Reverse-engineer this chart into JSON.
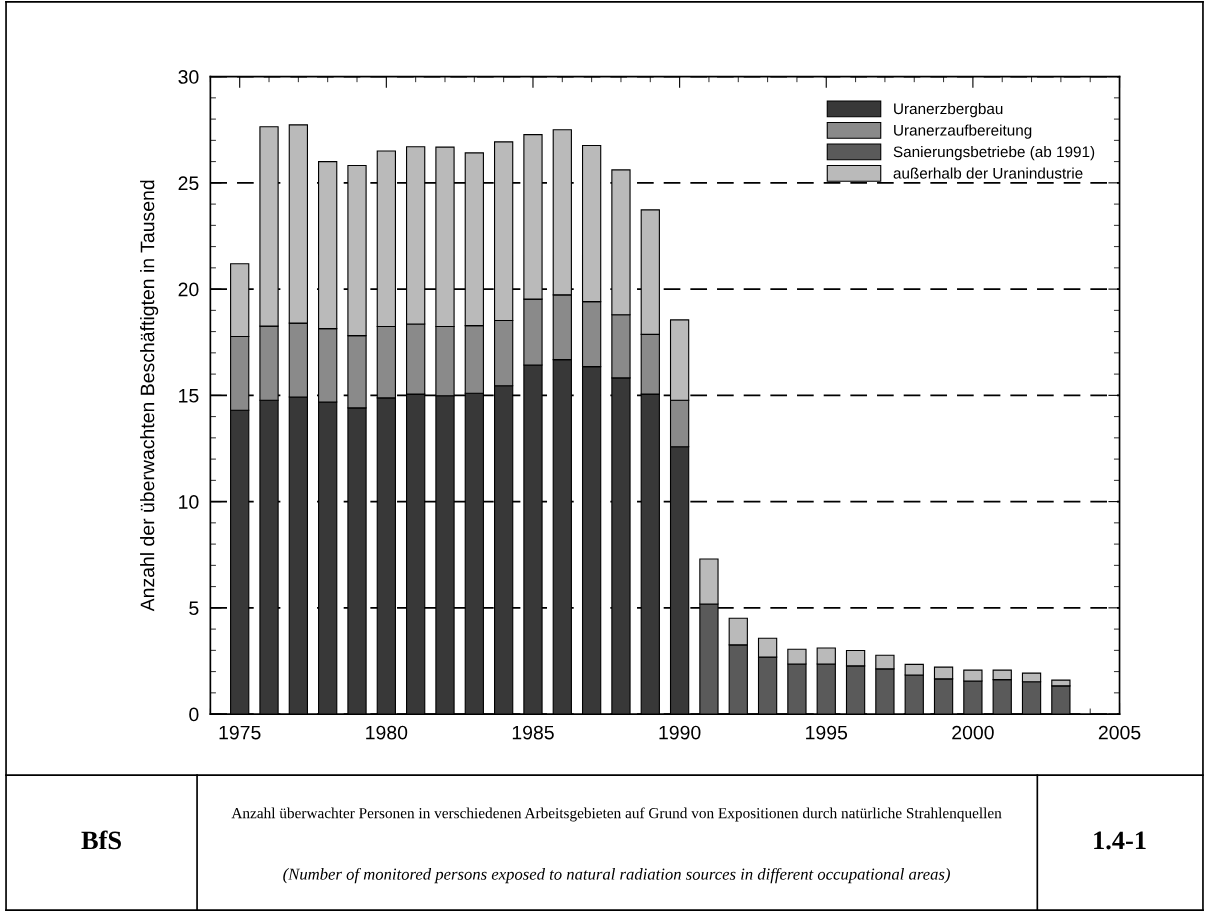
{
  "chart_data": {
    "type": "bar",
    "stacked": true,
    "title": "Anzahl überwachter Personen in verschiedenen Arbeitsgebieten auf Grund von Expositionen durch natürliche Strahlenquellen",
    "subtitle": "(Number of monitored persons exposed to natural radiation sources in different occupational areas)",
    "ylabel": "Anzahl der überwachten Beschäftigten in Tausend",
    "annotations": [
      "BfS",
      "1.4-1"
    ],
    "x": [
      1975,
      1976,
      1977,
      1978,
      1979,
      1980,
      1981,
      1982,
      1983,
      1984,
      1985,
      1986,
      1987,
      1988,
      1989,
      1990,
      1991,
      1992,
      1993,
      1994,
      1995,
      1996,
      1997,
      1998,
      1999,
      2000,
      2001,
      2002,
      2003
    ],
    "series": [
      {
        "name": "Uranerzbergbau",
        "color": "#383838",
        "values": [
          14.3,
          14.77,
          14.92,
          14.69,
          14.41,
          14.88,
          15.06,
          14.98,
          15.1,
          15.45,
          16.43,
          16.68,
          16.35,
          15.82,
          15.06,
          12.58,
          null,
          null,
          null,
          null,
          null,
          null,
          null,
          null,
          null,
          null,
          null,
          null,
          null
        ]
      },
      {
        "name": "Uranerzaufbereitung",
        "color": "#8a8a8a",
        "values": [
          3.47,
          3.49,
          3.48,
          3.45,
          3.4,
          3.36,
          3.3,
          3.26,
          3.18,
          3.07,
          3.1,
          3.05,
          3.06,
          2.97,
          2.81,
          2.19,
          null,
          null,
          null,
          null,
          null,
          null,
          null,
          null,
          null,
          null,
          null,
          null,
          null
        ]
      },
      {
        "name": "Sanierungsbetriebe (ab 1991)",
        "color": "#5a5a5a",
        "values": [
          null,
          null,
          null,
          null,
          null,
          null,
          null,
          null,
          null,
          null,
          null,
          null,
          null,
          null,
          null,
          null,
          5.18,
          3.26,
          2.68,
          2.36,
          2.36,
          2.27,
          2.13,
          1.84,
          1.66,
          1.56,
          1.62,
          1.52,
          1.33
        ]
      },
      {
        "name": "außerhalb der Uranindustrie",
        "color": "#bababa",
        "values": [
          3.42,
          9.38,
          9.33,
          7.86,
          8.01,
          8.26,
          8.34,
          8.44,
          8.13,
          8.41,
          7.74,
          7.77,
          7.35,
          6.82,
          5.86,
          3.78,
          2.12,
          1.25,
          0.89,
          0.69,
          0.75,
          0.72,
          0.64,
          0.5,
          0.55,
          0.51,
          0.45,
          0.41,
          0.27
        ]
      }
    ],
    "xlim": [
      1974,
      2005
    ],
    "xticks": [
      1975,
      1980,
      1985,
      1990,
      1995,
      2000,
      2005
    ],
    "ylim": [
      0,
      30
    ],
    "yticks": [
      0,
      5,
      10,
      15,
      20,
      25,
      30
    ],
    "grid": "y",
    "legend": "top right"
  }
}
